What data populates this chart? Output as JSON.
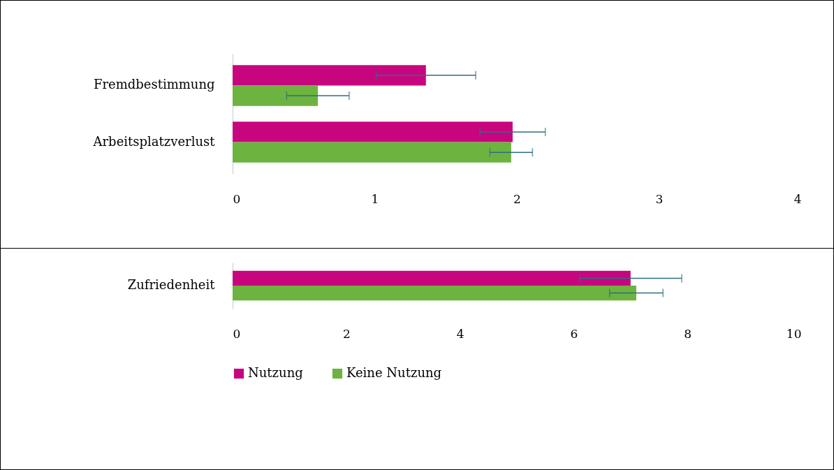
{
  "chart_data": [
    {
      "type": "bar",
      "orientation": "horizontal",
      "categories": [
        "Fremdbestimmung",
        "Arbeitsplatzverlust"
      ],
      "series": [
        {
          "color": "#c7057e",
          "values": [
            1.36,
            1.97
          ],
          "errors": [
            0.35,
            0.23
          ]
        },
        {
          "color": "#6db33f",
          "values": [
            0.6,
            1.96
          ],
          "errors": [
            0.22,
            0.15
          ]
        }
      ],
      "xlim": [
        0,
        4
      ],
      "xticks": [
        0,
        1,
        2,
        3,
        4
      ],
      "grid": false,
      "legend": false
    },
    {
      "type": "bar",
      "orientation": "horizontal",
      "categories": [
        "Zufriedenheit"
      ],
      "series": [
        {
          "name": "Nutzung",
          "color": "#c7057e",
          "values": [
            7.0
          ],
          "errors": [
            0.9
          ]
        },
        {
          "name": "Keine Nutzung",
          "color": "#6db33f",
          "values": [
            7.1
          ],
          "errors": [
            0.47
          ]
        }
      ],
      "xlim": [
        0,
        10
      ],
      "xticks": [
        0,
        2,
        4,
        6,
        8,
        10
      ],
      "grid": false,
      "legend": "bottom"
    }
  ]
}
